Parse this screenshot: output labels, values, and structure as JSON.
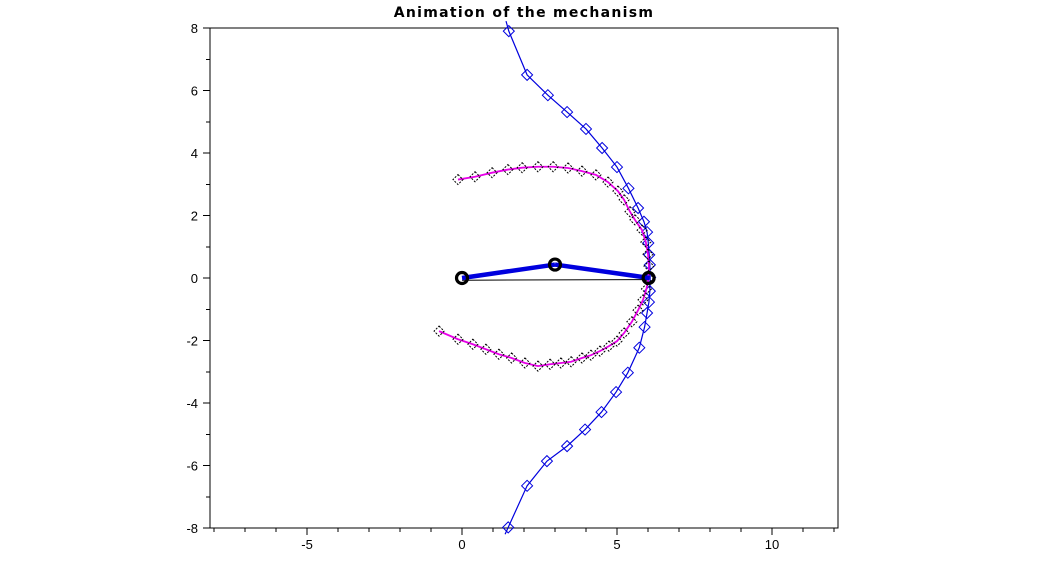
{
  "figure": {
    "title": "Animation of the mechanism"
  },
  "chart_data": {
    "type": "line",
    "title": "Animation of the mechanism",
    "xlabel": "",
    "ylabel": "",
    "xlim": [
      -8.13,
      12.13
    ],
    "ylim": [
      -8,
      8
    ],
    "grid": false,
    "legend": null,
    "xticks": {
      "major": [
        -5,
        0,
        5,
        10
      ],
      "labels": [
        "-5",
        "0",
        "5",
        "10"
      ],
      "minor_step": 1
    },
    "yticks": {
      "major": [
        -8,
        -6,
        -4,
        -2,
        0,
        2,
        4,
        6,
        8
      ],
      "labels": [
        "-8",
        "-6",
        "-4",
        "-2",
        "0",
        "2",
        "4",
        "6",
        "8"
      ],
      "minor_step": 1
    },
    "series": [
      {
        "name": "coupler-point-trajectory",
        "color": "#0000DE",
        "marker": "diamond-open",
        "marker_stroke": "#0000DE",
        "marker_dotted": false,
        "ext_pre": [
          1.42,
          8.22
        ],
        "ext_post": [
          1.39,
          -8.2
        ],
        "points": [
          [
            1.51,
            7.9
          ],
          [
            2.1,
            6.5
          ],
          [
            2.77,
            5.85
          ],
          [
            3.39,
            5.31
          ],
          [
            4.0,
            4.77
          ],
          [
            4.52,
            4.16
          ],
          [
            5.0,
            3.55
          ],
          [
            5.37,
            2.87
          ],
          [
            5.68,
            2.24
          ],
          [
            5.87,
            1.8
          ],
          [
            5.97,
            1.47
          ],
          [
            6.01,
            1.12
          ],
          [
            6.04,
            0.74
          ],
          [
            6.06,
            0.42
          ],
          [
            6.07,
            0.02
          ],
          [
            6.06,
            -0.42
          ],
          [
            6.03,
            -0.77
          ],
          [
            5.97,
            -1.12
          ],
          [
            5.89,
            -1.57
          ],
          [
            5.72,
            -2.23
          ],
          [
            5.35,
            -3.03
          ],
          [
            4.97,
            -3.65
          ],
          [
            4.5,
            -4.29
          ],
          [
            3.97,
            -4.85
          ],
          [
            3.39,
            -5.38
          ],
          [
            2.74,
            -5.86
          ],
          [
            2.1,
            -6.65
          ],
          [
            1.49,
            -7.98
          ]
        ]
      },
      {
        "name": "knee-joint-trajectory",
        "color": "#E800E8",
        "marker": "diamond-open",
        "marker_stroke": "#000000",
        "marker_dotted": true,
        "ext_pre": null,
        "ext_post": null,
        "points": [
          [
            -0.13,
            3.15
          ],
          [
            0.42,
            3.24
          ],
          [
            0.97,
            3.37
          ],
          [
            1.48,
            3.47
          ],
          [
            1.94,
            3.53
          ],
          [
            2.45,
            3.56
          ],
          [
            2.94,
            3.56
          ],
          [
            3.42,
            3.52
          ],
          [
            3.87,
            3.42
          ],
          [
            4.32,
            3.3
          ],
          [
            4.71,
            3.07
          ],
          [
            5.03,
            2.78
          ],
          [
            5.23,
            2.5
          ],
          [
            5.42,
            2.12
          ],
          [
            5.58,
            1.86
          ],
          [
            5.81,
            1.53
          ],
          [
            5.93,
            1.15
          ],
          [
            6.0,
            0.76
          ],
          [
            6.03,
            0.38
          ],
          [
            6.02,
            0.0
          ],
          [
            5.95,
            -0.35
          ],
          [
            5.84,
            -0.7
          ],
          [
            5.68,
            -1.03
          ],
          [
            5.48,
            -1.4
          ],
          [
            5.23,
            -1.76
          ],
          [
            5.0,
            -2.02
          ],
          [
            4.74,
            -2.18
          ],
          [
            4.45,
            -2.34
          ],
          [
            4.16,
            -2.47
          ],
          [
            3.87,
            -2.56
          ],
          [
            3.52,
            -2.68
          ],
          [
            3.19,
            -2.72
          ],
          [
            2.84,
            -2.76
          ],
          [
            2.45,
            -2.82
          ],
          [
            2.03,
            -2.72
          ],
          [
            1.6,
            -2.56
          ],
          [
            1.19,
            -2.44
          ],
          [
            0.77,
            -2.28
          ],
          [
            0.35,
            -2.12
          ],
          [
            -0.13,
            -1.96
          ],
          [
            -0.74,
            -1.7
          ]
        ]
      }
    ],
    "mechanism": {
      "link_color": "#0000DE",
      "ground_color": "#000000",
      "joint_color": "#000000",
      "links": [
        {
          "from": [
            0,
            0
          ],
          "to": [
            3.0,
            0.43
          ]
        },
        {
          "from": [
            3.0,
            0.43
          ],
          "to": [
            6.05,
            0
          ]
        }
      ],
      "ground": {
        "from": [
          0,
          -0.07
        ],
        "to": [
          6.02,
          -0.05
        ]
      },
      "joints": [
        [
          0,
          0
        ],
        [
          3.0,
          0.43
        ],
        [
          6.02,
          0
        ]
      ]
    }
  }
}
